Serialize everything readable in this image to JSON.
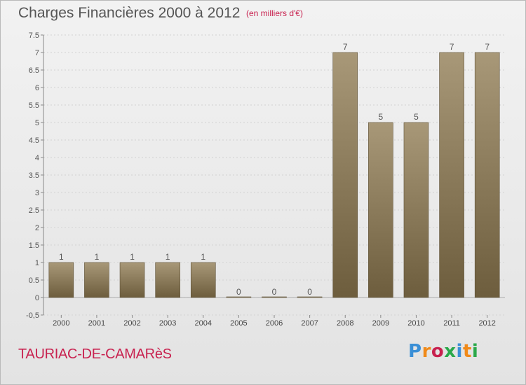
{
  "header": {
    "title": "Charges Financières 2000 à 2012",
    "subtitle": "(en milliers d'€)"
  },
  "footer": {
    "place": "TAURIAC-DE-CAMARèS",
    "logo": "Proxiti"
  },
  "colors": {
    "bar_top": "#a89878",
    "bar_bottom": "#6d5d3d",
    "title": "#555555",
    "accent": "#c8214f",
    "logo": [
      "#3a8fd6",
      "#f08a1a",
      "#c8214f",
      "#2aa84a",
      "#3a8fd6",
      "#f08a1a",
      "#2aa84a"
    ]
  },
  "chart_data": {
    "type": "bar",
    "title": "Charges Financières 2000 à 2012",
    "subtitle": "(en milliers d'€)",
    "categories": [
      "2000",
      "2001",
      "2002",
      "2003",
      "2004",
      "2005",
      "2006",
      "2007",
      "2008",
      "2009",
      "2010",
      "2011",
      "2012"
    ],
    "values": [
      1,
      1,
      1,
      1,
      1,
      0,
      0,
      0,
      7,
      5,
      5,
      7,
      7
    ],
    "ylim": [
      -0.5,
      7.5
    ],
    "yticks": [
      "-0,5",
      "0",
      "0.5",
      "1",
      "1.5",
      "2",
      "2.5",
      "3",
      "3.5",
      "4",
      "4.5",
      "5",
      "5.5",
      "6",
      "6.5",
      "7",
      "7.5"
    ],
    "grid": true
  }
}
